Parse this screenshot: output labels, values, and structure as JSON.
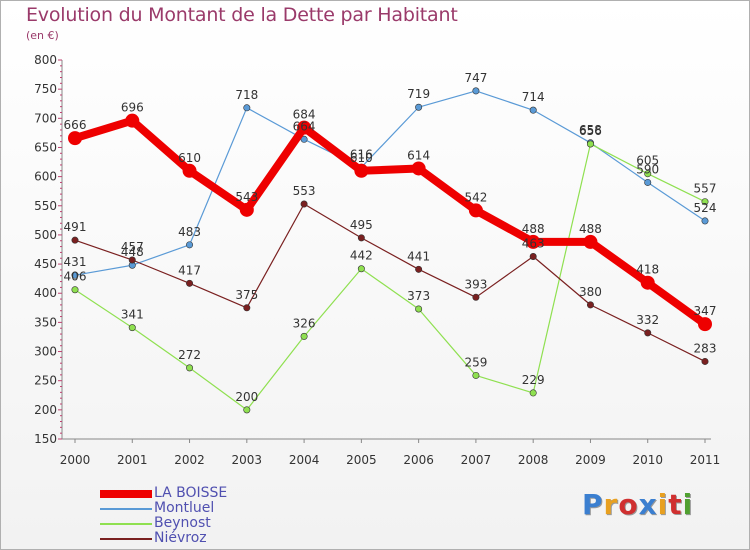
{
  "title": "Evolution du Montant de la Dette par Habitant",
  "subtitle": "(en €)",
  "logo": {
    "text": "Proxiti",
    "colors": [
      "#3b7fd0",
      "#e8a020",
      "#d03030",
      "#3b7fd0",
      "#e8a020",
      "#d03030",
      "#50a030"
    ]
  },
  "chart_data": {
    "type": "line",
    "title": "Evolution du Montant de la Dette par Habitant",
    "subtitle": "(en €)",
    "xlabel": "",
    "ylabel": "",
    "x": [
      "2000",
      "2001",
      "2002",
      "2003",
      "2004",
      "2005",
      "2006",
      "2007",
      "2008",
      "2009",
      "2010",
      "2011"
    ],
    "ylim": [
      150,
      800
    ],
    "yticks": [
      150,
      200,
      250,
      300,
      350,
      400,
      450,
      500,
      550,
      600,
      650,
      700,
      750,
      800
    ],
    "grid": false,
    "legend_position": "bottom-left",
    "series": [
      {
        "name": "LA BOISSE",
        "color": "#ee0000",
        "width": 8,
        "marker": 7,
        "values": [
          666,
          696,
          610,
          543,
          684,
          610,
          614,
          542,
          488,
          488,
          418,
          347
        ]
      },
      {
        "name": "Montluel",
        "color": "#5a9ad6",
        "width": 1.2,
        "marker": 3.2,
        "values": [
          431,
          448,
          483,
          718,
          664,
          616,
          719,
          747,
          714,
          658,
          590,
          524
        ]
      },
      {
        "name": "Beynost",
        "color": "#8fe050",
        "width": 1.2,
        "marker": 3.2,
        "values": [
          406,
          341,
          272,
          200,
          326,
          442,
          373,
          259,
          229,
          656,
          605,
          557
        ]
      },
      {
        "name": "Niévroz",
        "color": "#7a2020",
        "width": 1.2,
        "marker": 3.2,
        "values": [
          491,
          457,
          417,
          375,
          553,
          495,
          441,
          393,
          463,
          380,
          332,
          283
        ]
      }
    ]
  }
}
